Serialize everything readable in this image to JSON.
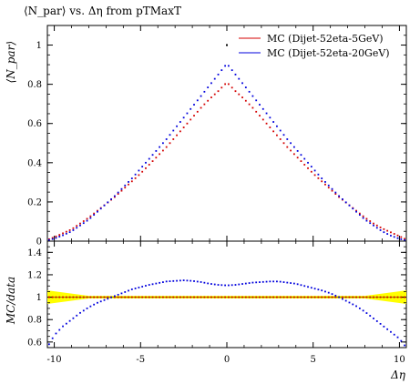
{
  "chart_data": [
    {
      "type": "scatter",
      "title": "⟨N_par⟩ vs. Δη from pTMaxT",
      "ylabel": "⟨N_par⟩",
      "xlim": [
        -10.4,
        10.4
      ],
      "ylim": [
        0,
        1.1
      ],
      "yticks": [
        0,
        0.2,
        0.4,
        0.6,
        0.8,
        1
      ],
      "ytick_labels": [
        "0",
        "0.2",
        "0.4",
        "0.6",
        "0.8",
        "1"
      ],
      "legend_position": "top-right",
      "series": [
        {
          "name": "MC (Dijet-52eta-5GeV)",
          "color": "#d40000",
          "x": [
            -10.3,
            -10,
            -9.5,
            -9,
            -8.5,
            -8,
            -7.5,
            -7,
            -6.5,
            -6,
            -5.5,
            -5,
            -4.5,
            -4,
            -3.5,
            -3,
            -2.5,
            -2,
            -1.5,
            -1,
            -0.5,
            0,
            0.5,
            1,
            1.5,
            2,
            2.5,
            3,
            3.5,
            4,
            4.5,
            5,
            5.5,
            6,
            6.5,
            7,
            7.5,
            8,
            8.5,
            9,
            9.5,
            10,
            10.3
          ],
          "y": [
            0.01,
            0.02,
            0.04,
            0.06,
            0.09,
            0.12,
            0.155,
            0.19,
            0.225,
            0.265,
            0.305,
            0.345,
            0.39,
            0.435,
            0.48,
            0.53,
            0.58,
            0.63,
            0.68,
            0.725,
            0.765,
            0.81,
            0.765,
            0.725,
            0.68,
            0.63,
            0.58,
            0.53,
            0.48,
            0.435,
            0.39,
            0.345,
            0.305,
            0.265,
            0.225,
            0.19,
            0.155,
            0.12,
            0.09,
            0.065,
            0.045,
            0.025,
            0.012
          ]
        },
        {
          "name": "MC (Dijet-52eta-20GeV)",
          "color": "#0000dd",
          "x": [
            -10.3,
            -10,
            -9.5,
            -9,
            -8.5,
            -8,
            -7.5,
            -7,
            -6.5,
            -6,
            -5.5,
            -5,
            -4.5,
            -4,
            -3.5,
            -3,
            -2.5,
            -2,
            -1.5,
            -1,
            -0.5,
            0,
            0.5,
            1,
            1.5,
            2,
            2.5,
            3,
            3.5,
            4,
            4.5,
            5,
            5.5,
            6,
            6.5,
            7,
            7.5,
            8,
            8.5,
            9,
            9.5,
            10,
            10.3
          ],
          "y": [
            0.006,
            0.013,
            0.03,
            0.05,
            0.08,
            0.11,
            0.15,
            0.19,
            0.23,
            0.275,
            0.32,
            0.37,
            0.42,
            0.47,
            0.52,
            0.575,
            0.63,
            0.685,
            0.74,
            0.795,
            0.85,
            0.905,
            0.85,
            0.795,
            0.74,
            0.685,
            0.63,
            0.575,
            0.52,
            0.47,
            0.42,
            0.37,
            0.32,
            0.275,
            0.23,
            0.19,
            0.15,
            0.11,
            0.08,
            0.05,
            0.028,
            0.012,
            0.005
          ]
        }
      ],
      "marker": {
        "x": 0,
        "y": 1.0
      }
    },
    {
      "type": "scatter",
      "ylabel": "MC/data",
      "xlabel": "Δη",
      "xlim": [
        -10.4,
        10.4
      ],
      "ylim": [
        0.55,
        1.5
      ],
      "yticks": [
        0.6,
        0.8,
        1,
        1.2,
        1.4
      ],
      "ytick_labels": [
        "0.6",
        "0.8",
        "1",
        "1.2",
        "1.4"
      ],
      "xticks": [
        -10,
        -5,
        0,
        5,
        10
      ],
      "xtick_labels": [
        "-10",
        "-5",
        "0",
        "5",
        "10"
      ],
      "reference_line": 1,
      "band_color": "#ffff00",
      "series": [
        {
          "color": "#d40000",
          "x": [
            -10.3,
            -9,
            -7,
            -5,
            -3,
            -1,
            0,
            1,
            3,
            5,
            7,
            9,
            10.3
          ],
          "y": [
            1,
            1,
            1,
            1,
            1,
            1,
            1,
            1,
            1,
            1,
            1,
            1,
            1
          ]
        },
        {
          "color": "#0000dd",
          "x": [
            -10.3,
            -10,
            -9.5,
            -9,
            -8.5,
            -8,
            -7.5,
            -7,
            -6.5,
            -6,
            -5.5,
            -5,
            -4.5,
            -4,
            -3.5,
            -3,
            -2.5,
            -2,
            -1.5,
            -1,
            -0.5,
            0,
            0.5,
            1,
            1.5,
            2,
            2.5,
            3,
            3.5,
            4,
            4.5,
            5,
            5.5,
            6,
            6.5,
            7,
            7.5,
            8,
            8.5,
            9,
            9.5,
            10,
            10.3
          ],
          "y": [
            0.58,
            0.66,
            0.74,
            0.8,
            0.86,
            0.91,
            0.95,
            0.98,
            1.01,
            1.04,
            1.07,
            1.09,
            1.11,
            1.125,
            1.14,
            1.145,
            1.15,
            1.145,
            1.135,
            1.12,
            1.11,
            1.105,
            1.11,
            1.12,
            1.13,
            1.135,
            1.14,
            1.14,
            1.13,
            1.12,
            1.1,
            1.08,
            1.06,
            1.035,
            1.0,
            0.96,
            0.92,
            0.87,
            0.81,
            0.75,
            0.69,
            0.63,
            0.57
          ]
        }
      ]
    }
  ]
}
